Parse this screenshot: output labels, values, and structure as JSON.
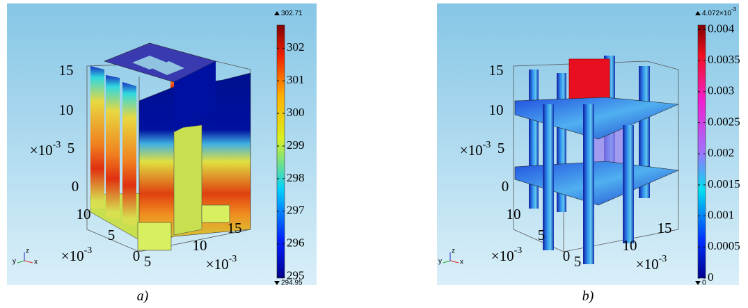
{
  "panels": [
    {
      "caption": "a)",
      "colorbar": {
        "lim": [
          294.95,
          302.71
        ],
        "ticks": [
          295,
          296,
          297,
          298,
          299,
          300,
          301,
          302
        ],
        "max_label": "302.71",
        "min_label": "294.95"
      },
      "axes": {
        "z_ticks": [
          "15",
          "10",
          "5",
          "0"
        ],
        "y_ticks": [
          "10",
          "5",
          "0"
        ],
        "x_ticks": [
          "5",
          "10",
          "15"
        ],
        "multiplier": "×10",
        "exponent": "-3"
      },
      "triad": [
        "y",
        "z",
        "x"
      ]
    },
    {
      "caption": "b)",
      "colorbar": {
        "lim": [
          0,
          0.004072
        ],
        "ticks": [
          0,
          0.0005,
          0.001,
          0.0015,
          0.002,
          0.0025,
          0.003,
          0.0035,
          0.004
        ],
        "max_label": "4.072×10",
        "max_exponent": "-3",
        "min_label": "0"
      },
      "axes": {
        "z_ticks": [
          "15",
          "10",
          "5",
          "0"
        ],
        "y_ticks": [
          "10",
          "5",
          "0"
        ],
        "x_ticks": [
          "5",
          "10",
          "15"
        ],
        "multiplier": "×10",
        "exponent": "-3"
      },
      "triad": [
        "y",
        "z",
        "x"
      ]
    }
  ]
}
